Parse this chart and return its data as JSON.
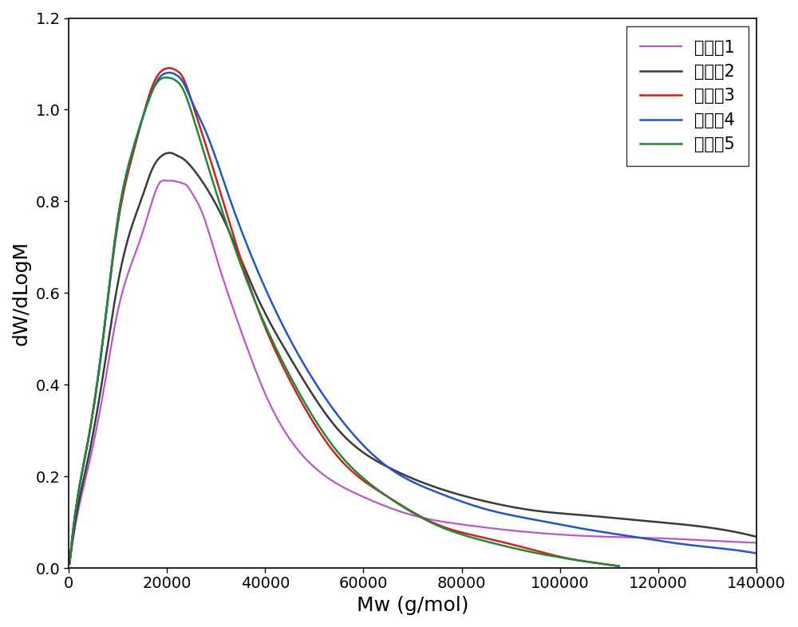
{
  "title": "",
  "xlabel": "Mw (g/mol)",
  "ylabel": "dW/dLogM",
  "xlim": [
    0,
    140000
  ],
  "ylim": [
    0,
    1.2
  ],
  "xticks": [
    0,
    20000,
    40000,
    60000,
    80000,
    100000,
    120000,
    140000
  ],
  "yticks": [
    0.0,
    0.2,
    0.4,
    0.6,
    0.8,
    1.0,
    1.2
  ],
  "series": [
    {
      "label": "实施兠1",
      "color": "#bb55cc",
      "linewidth": 1.6,
      "x": [
        200,
        1500,
        4000,
        7000,
        10000,
        13000,
        15000,
        17000,
        18500,
        20000,
        21000,
        22000,
        23000,
        24000,
        25000,
        27000,
        30000,
        35000,
        40000,
        50000,
        60000,
        70000,
        80000,
        90000,
        100000,
        110000,
        120000,
        130000,
        140000
      ],
      "y": [
        0.01,
        0.1,
        0.22,
        0.38,
        0.56,
        0.67,
        0.73,
        0.8,
        0.84,
        0.845,
        0.845,
        0.843,
        0.84,
        0.835,
        0.82,
        0.78,
        0.68,
        0.52,
        0.38,
        0.22,
        0.155,
        0.115,
        0.095,
        0.082,
        0.073,
        0.068,
        0.065,
        0.06,
        0.055
      ]
    },
    {
      "label": "实施兠2",
      "color": "#3a3a3a",
      "linewidth": 1.8,
      "x": [
        200,
        1500,
        4000,
        7000,
        10000,
        13000,
        15000,
        17000,
        18500,
        20000,
        21000,
        22000,
        23000,
        25000,
        28000,
        32000,
        38000,
        45000,
        55000,
        65000,
        75000,
        85000,
        95000,
        105000,
        115000,
        125000,
        135000,
        140000
      ],
      "y": [
        0.01,
        0.11,
        0.24,
        0.42,
        0.62,
        0.75,
        0.81,
        0.87,
        0.895,
        0.905,
        0.905,
        0.9,
        0.895,
        0.875,
        0.83,
        0.75,
        0.6,
        0.46,
        0.3,
        0.22,
        0.175,
        0.145,
        0.125,
        0.115,
        0.105,
        0.095,
        0.08,
        0.068
      ]
    },
    {
      "label": "实施兠3",
      "color": "#cc2222",
      "linewidth": 1.8,
      "x": [
        200,
        1500,
        4000,
        7000,
        10000,
        13000,
        15000,
        17000,
        18500,
        20000,
        21000,
        22000,
        23000,
        25000,
        28000,
        32000,
        38000,
        45000,
        55000,
        65000,
        75000,
        85000,
        95000,
        102000,
        108000,
        112000
      ],
      "y": [
        0.01,
        0.13,
        0.28,
        0.5,
        0.75,
        0.9,
        0.98,
        1.05,
        1.08,
        1.09,
        1.09,
        1.085,
        1.075,
        1.02,
        0.92,
        0.78,
        0.58,
        0.41,
        0.24,
        0.155,
        0.095,
        0.065,
        0.038,
        0.02,
        0.01,
        0.004
      ]
    },
    {
      "label": "实施兠4",
      "color": "#2255cc",
      "linewidth": 1.8,
      "x": [
        200,
        1500,
        4000,
        7000,
        10000,
        13000,
        15000,
        17000,
        18500,
        20000,
        21000,
        22000,
        23000,
        25000,
        28000,
        32000,
        38000,
        45000,
        55000,
        65000,
        75000,
        85000,
        95000,
        105000,
        115000,
        125000,
        135000,
        140000
      ],
      "y": [
        0.01,
        0.13,
        0.28,
        0.5,
        0.76,
        0.91,
        0.98,
        1.04,
        1.07,
        1.08,
        1.08,
        1.075,
        1.065,
        1.02,
        0.95,
        0.83,
        0.66,
        0.5,
        0.33,
        0.22,
        0.165,
        0.128,
        0.105,
        0.085,
        0.068,
        0.052,
        0.04,
        0.032
      ]
    },
    {
      "label": "实施兠5",
      "color": "#228833",
      "linewidth": 1.8,
      "x": [
        200,
        1500,
        4000,
        7000,
        10000,
        13000,
        15000,
        17000,
        18500,
        20000,
        21000,
        22000,
        23000,
        25000,
        28000,
        32000,
        38000,
        45000,
        55000,
        65000,
        75000,
        85000,
        95000,
        103000,
        108000,
        112000
      ],
      "y": [
        0.01,
        0.13,
        0.28,
        0.5,
        0.76,
        0.91,
        0.98,
        1.04,
        1.065,
        1.07,
        1.068,
        1.062,
        1.05,
        0.995,
        0.89,
        0.755,
        0.58,
        0.42,
        0.25,
        0.155,
        0.093,
        0.058,
        0.033,
        0.018,
        0.01,
        0.004
      ]
    }
  ],
  "legend_loc": "upper right",
  "legend_fontsize": 15,
  "axis_fontsize": 18,
  "tick_fontsize": 14,
  "background_color": "#ffffff"
}
